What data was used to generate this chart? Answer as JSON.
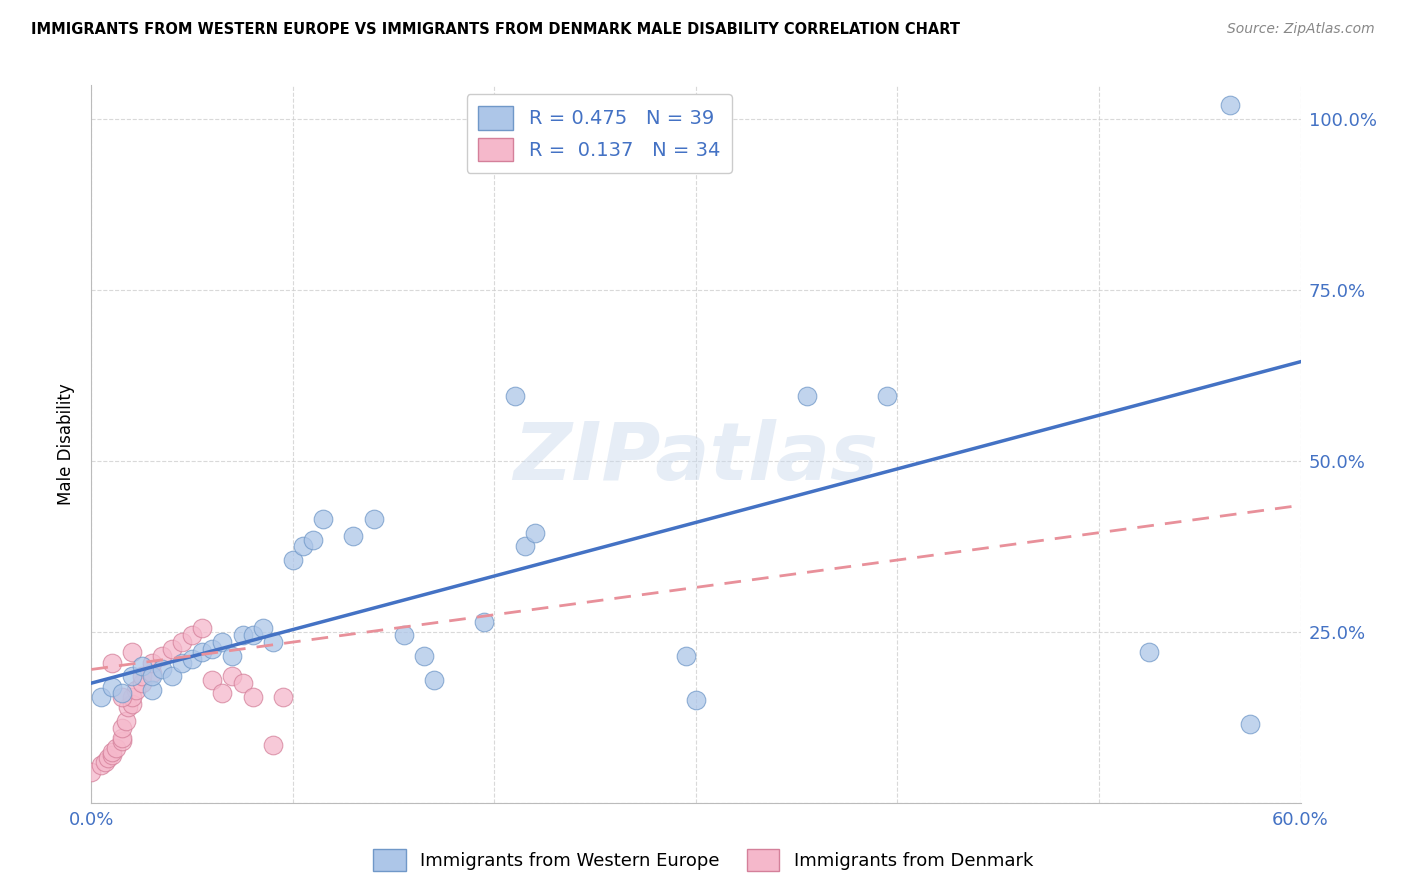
{
  "title": "IMMIGRANTS FROM WESTERN EUROPE VS IMMIGRANTS FROM DENMARK MALE DISABILITY CORRELATION CHART",
  "source": "Source: ZipAtlas.com",
  "ylabel": "Male Disability",
  "xlim": [
    0.0,
    0.6
  ],
  "ylim": [
    0.0,
    1.05
  ],
  "xticks": [
    0.0,
    0.1,
    0.2,
    0.3,
    0.4,
    0.5,
    0.6
  ],
  "xticklabels": [
    "0.0%",
    "",
    "",
    "",
    "",
    "",
    "60.0%"
  ],
  "yticks": [
    0.0,
    0.25,
    0.5,
    0.75,
    1.0
  ],
  "yticklabels": [
    "",
    "25.0%",
    "50.0%",
    "75.0%",
    "100.0%"
  ],
  "blue_R": 0.475,
  "blue_N": 39,
  "pink_R": 0.137,
  "pink_N": 34,
  "blue_color": "#adc6e8",
  "pink_color": "#f5b8cb",
  "blue_line_color": "#4472c4",
  "pink_line_color": "#e8909a",
  "watermark": "ZIPatlas",
  "blue_scatter_x": [
    0.005,
    0.01,
    0.015,
    0.02,
    0.025,
    0.03,
    0.03,
    0.035,
    0.04,
    0.045,
    0.05,
    0.055,
    0.06,
    0.065,
    0.07,
    0.075,
    0.08,
    0.085,
    0.09,
    0.1,
    0.105,
    0.11,
    0.115,
    0.13,
    0.14,
    0.155,
    0.165,
    0.17,
    0.195,
    0.21,
    0.215,
    0.22,
    0.295,
    0.3,
    0.355,
    0.395,
    0.525,
    0.565,
    0.575
  ],
  "blue_scatter_y": [
    0.155,
    0.17,
    0.16,
    0.185,
    0.2,
    0.165,
    0.185,
    0.195,
    0.185,
    0.205,
    0.21,
    0.22,
    0.225,
    0.235,
    0.215,
    0.245,
    0.245,
    0.255,
    0.235,
    0.355,
    0.375,
    0.385,
    0.415,
    0.39,
    0.415,
    0.245,
    0.215,
    0.18,
    0.265,
    0.595,
    0.375,
    0.395,
    0.215,
    0.15,
    0.595,
    0.595,
    0.22,
    1.02,
    0.115
  ],
  "pink_scatter_x": [
    0.0,
    0.005,
    0.007,
    0.008,
    0.01,
    0.01,
    0.012,
    0.015,
    0.015,
    0.015,
    0.017,
    0.018,
    0.02,
    0.02,
    0.022,
    0.025,
    0.025,
    0.03,
    0.03,
    0.035,
    0.04,
    0.045,
    0.05,
    0.055,
    0.06,
    0.065,
    0.07,
    0.075,
    0.08,
    0.09,
    0.095,
    0.01,
    0.015,
    0.02
  ],
  "pink_scatter_y": [
    0.045,
    0.055,
    0.06,
    0.065,
    0.07,
    0.075,
    0.08,
    0.09,
    0.095,
    0.11,
    0.12,
    0.14,
    0.145,
    0.155,
    0.165,
    0.175,
    0.185,
    0.19,
    0.205,
    0.215,
    0.225,
    0.235,
    0.245,
    0.255,
    0.18,
    0.16,
    0.185,
    0.175,
    0.155,
    0.085,
    0.155,
    0.205,
    0.155,
    0.22
  ],
  "blue_line_x0": 0.0,
  "blue_line_y0": 0.175,
  "blue_line_x1": 0.6,
  "blue_line_y1": 0.645,
  "pink_line_x0": 0.0,
  "pink_line_y0": 0.195,
  "pink_line_x1": 0.6,
  "pink_line_y1": 0.435
}
